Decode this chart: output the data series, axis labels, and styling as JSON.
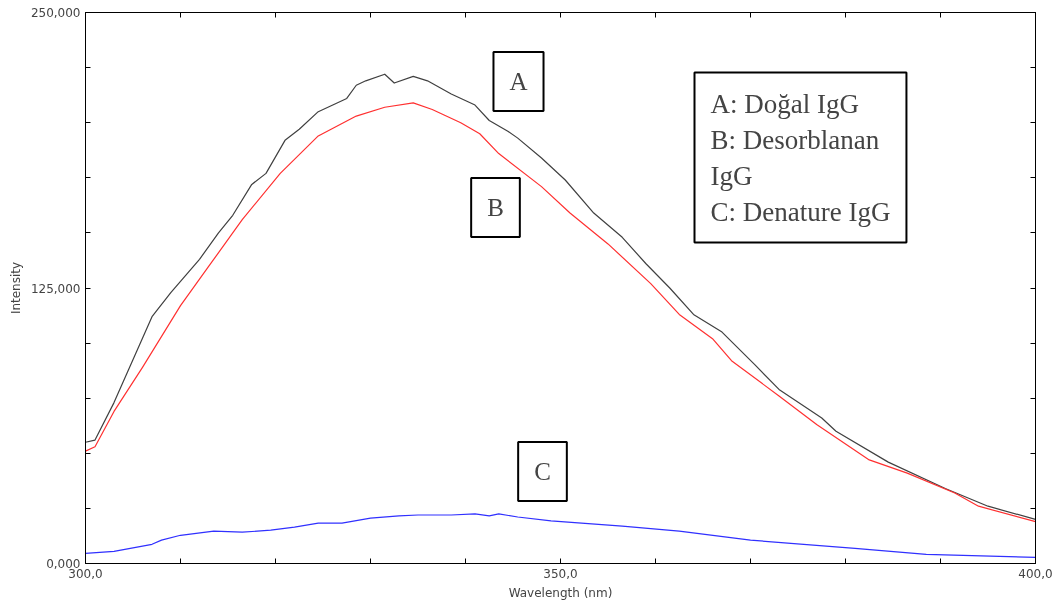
{
  "chart_data": {
    "type": "line",
    "xlabel": "Wavelength (nm)",
    "ylabel": "Intensity",
    "xlim": [
      300,
      400
    ],
    "ylim": [
      0,
      250
    ],
    "xticks": [
      {
        "value": 300,
        "label": "300,0"
      },
      {
        "value": 310,
        "label": null
      },
      {
        "value": 320,
        "label": null
      },
      {
        "value": 330,
        "label": null
      },
      {
        "value": 340,
        "label": null
      },
      {
        "value": 350,
        "label": "350,0"
      },
      {
        "value": 360,
        "label": null
      },
      {
        "value": 370,
        "label": null
      },
      {
        "value": 380,
        "label": null
      },
      {
        "value": 390,
        "label": null
      },
      {
        "value": 400,
        "label": "400,0"
      }
    ],
    "yticks": [
      {
        "value": 0,
        "label": "0,000"
      },
      {
        "value": 25,
        "label": null
      },
      {
        "value": 50,
        "label": null
      },
      {
        "value": 75,
        "label": null
      },
      {
        "value": 100,
        "label": null
      },
      {
        "value": 125,
        "label": "125,000"
      },
      {
        "value": 150,
        "label": null
      },
      {
        "value": 175,
        "label": null
      },
      {
        "value": 200,
        "label": null
      },
      {
        "value": 225,
        "label": null
      },
      {
        "value": 250,
        "label": "250,000"
      }
    ],
    "grid": false,
    "marker": "none",
    "line_style": "solid",
    "series": [
      {
        "color": "#404040",
        "x": [
          300,
          301,
          303,
          307,
          309,
          312,
          314,
          315.5,
          317.5,
          319,
          321,
          322.5,
          324.5,
          327.5,
          328.5,
          329.5,
          331.5,
          332.5,
          334.5,
          336,
          338.5,
          341,
          342.5,
          344.5,
          345.5,
          348,
          350.5,
          353.5,
          356.5,
          359,
          361.5,
          364,
          367,
          370.5,
          373,
          377.5,
          379,
          384.5,
          390.5,
          395,
          400
        ],
        "values": [
          55,
          56,
          73,
          112,
          123,
          138,
          150,
          158,
          172,
          177,
          192,
          197,
          205,
          211,
          217,
          219,
          222,
          218,
          221,
          219,
          213,
          208,
          201,
          196,
          193,
          184,
          174,
          159,
          148,
          136,
          125,
          113,
          105,
          90,
          79,
          66,
          60,
          46,
          34,
          26,
          20
        ]
      },
      {
        "color": "#ff3030",
        "x": [
          300,
          301,
          303,
          306,
          310,
          313,
          316.5,
          320.5,
          324.5,
          328.5,
          331.5,
          334.5,
          336.5,
          339.5,
          341.5,
          343.5,
          348,
          351,
          355,
          359.5,
          362.5,
          366,
          368,
          373,
          377,
          382.5,
          386.5,
          391.5,
          394,
          400
        ],
        "values": [
          51,
          53,
          69,
          89,
          117,
          135,
          156,
          177,
          194,
          203,
          207,
          209,
          206,
          200,
          195,
          186,
          171,
          159,
          145,
          127,
          113,
          102,
          92,
          76,
          63,
          47,
          41,
          32,
          26,
          19
        ]
      },
      {
        "color": "#3030ff",
        "x": [
          300,
          303,
          307,
          308,
          310,
          313.5,
          316.5,
          319.5,
          322,
          324.5,
          327,
          330,
          333,
          335,
          338.5,
          341,
          342.5,
          343.5,
          345.5,
          349,
          356.5,
          362.5,
          370,
          381,
          388.5,
          400
        ],
        "values": [
          4.6,
          5.5,
          8.7,
          10.6,
          12.8,
          14.7,
          14.2,
          15.1,
          16.5,
          18.3,
          18.3,
          20.6,
          21.6,
          22,
          22,
          22.5,
          21.6,
          22.5,
          21.1,
          19.3,
          17,
          14.7,
          10.6,
          6.9,
          4.1,
          2.8
        ]
      }
    ],
    "annotations": [
      "A",
      "B",
      "C",
      "A: Doğal IgG",
      "B: Desorblanan",
      "IgG",
      "C: Denature IgG"
    ]
  }
}
